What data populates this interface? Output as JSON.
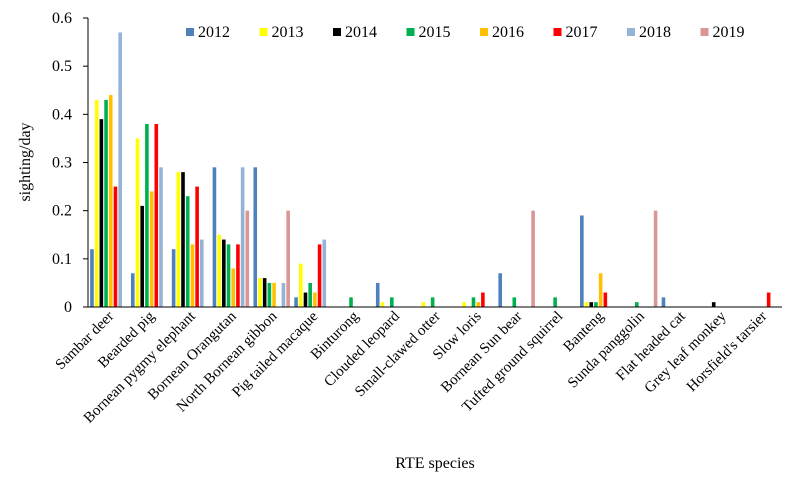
{
  "chart_data": {
    "type": "bar",
    "title": "",
    "xlabel": "RTE species",
    "ylabel": "sighting/day",
    "ylim": [
      0,
      0.6
    ],
    "yticks": [
      "0",
      "0.1",
      "0.2",
      "0.3",
      "0.4",
      "0.5",
      "0.6"
    ],
    "grid": false,
    "legend_position": "top",
    "categories": [
      "Sambar deer",
      "Bearded pig",
      "Bornean pygmy elephant",
      "Bornean Orangutan",
      "North Bornean gibbon",
      "Pig tailed macaque",
      "Binturong",
      "Clouded leopard",
      "Small-clawed otter",
      "Slow loris",
      "Bornean Sun bear",
      "Tufted ground squirrel",
      "Banteng",
      "Sunda panggolin",
      "Flat headed cat",
      "Grey leaf monkey",
      "Horsfield's tarsier"
    ],
    "series": [
      {
        "name": "2012",
        "color": "#4F81BD",
        "values": [
          0.12,
          0.07,
          0.12,
          0.29,
          0.29,
          0.02,
          0,
          0.05,
          0,
          0,
          0.07,
          0,
          0.19,
          0,
          0.02,
          0,
          0
        ]
      },
      {
        "name": "2013",
        "color": "#FFFF00",
        "values": [
          0.43,
          0.35,
          0.28,
          0.15,
          0.06,
          0.09,
          0,
          0.01,
          0.01,
          0.01,
          0,
          0,
          0.01,
          0,
          0,
          0,
          0
        ]
      },
      {
        "name": "2014",
        "color": "#000000",
        "values": [
          0.39,
          0.21,
          0.28,
          0.14,
          0.06,
          0.03,
          0,
          0,
          0,
          0,
          0,
          0,
          0.01,
          0,
          0,
          0.01,
          0
        ]
      },
      {
        "name": "2015",
        "color": "#00B050",
        "values": [
          0.43,
          0.38,
          0.23,
          0.13,
          0.05,
          0.05,
          0.02,
          0.02,
          0.02,
          0.02,
          0.02,
          0.02,
          0.01,
          0.01,
          0,
          0,
          0
        ]
      },
      {
        "name": "2016",
        "color": "#FFC000",
        "values": [
          0.44,
          0.24,
          0.13,
          0.08,
          0.05,
          0.03,
          0,
          0,
          0,
          0.01,
          0,
          0,
          0.07,
          0,
          0,
          0,
          0
        ]
      },
      {
        "name": "2017",
        "color": "#FF0000",
        "values": [
          0.25,
          0.38,
          0.25,
          0.13,
          0,
          0.13,
          0,
          0,
          0,
          0.03,
          0,
          0,
          0.03,
          0,
          0,
          0,
          0.03
        ]
      },
      {
        "name": "2018",
        "color": "#95B3D7",
        "values": [
          0.57,
          0.29,
          0.14,
          0.29,
          0.05,
          0.14,
          0,
          0,
          0,
          0,
          0,
          0,
          0,
          0,
          0,
          0,
          0
        ]
      },
      {
        "name": "2019",
        "color": "#D99694",
        "values": [
          0,
          0,
          0,
          0.2,
          0.2,
          0,
          0,
          0,
          0,
          0,
          0.2,
          0,
          0,
          0.2,
          0,
          0,
          0
        ]
      }
    ]
  }
}
